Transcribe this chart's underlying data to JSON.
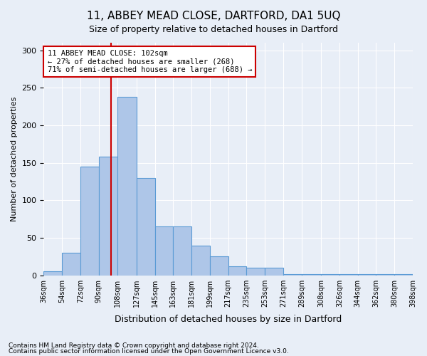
{
  "title": "11, ABBEY MEAD CLOSE, DARTFORD, DA1 5UQ",
  "subtitle": "Size of property relative to detached houses in Dartford",
  "xlabel": "Distribution of detached houses by size in Dartford",
  "ylabel": "Number of detached properties",
  "footer_line1": "Contains HM Land Registry data © Crown copyright and database right 2024.",
  "footer_line2": "Contains public sector information licensed under the Open Government Licence v3.0.",
  "bin_labels": [
    "36sqm",
    "54sqm",
    "72sqm",
    "90sqm",
    "108sqm",
    "127sqm",
    "145sqm",
    "163sqm",
    "181sqm",
    "199sqm",
    "217sqm",
    "235sqm",
    "253sqm",
    "271sqm",
    "289sqm",
    "308sqm",
    "326sqm",
    "344sqm",
    "362sqm",
    "380sqm",
    "398sqm"
  ],
  "bar_values": [
    5,
    30,
    145,
    158,
    238,
    130,
    65,
    65,
    40,
    25,
    12,
    10,
    10,
    2,
    2,
    2,
    2,
    2,
    2,
    2
  ],
  "bin_edges": [
    36,
    54,
    72,
    90,
    108,
    127,
    145,
    163,
    181,
    199,
    217,
    235,
    253,
    271,
    289,
    308,
    326,
    344,
    362,
    380,
    398
  ],
  "property_size": 102,
  "annotation_text": "11 ABBEY MEAD CLOSE: 102sqm\n← 27% of detached houses are smaller (268)\n71% of semi-detached houses are larger (688) →",
  "bar_color": "#aec6e8",
  "bar_edge_color": "#5b9bd5",
  "vline_color": "#cc0000",
  "annotation_box_color": "#ffffff",
  "annotation_box_edge": "#cc0000",
  "background_color": "#e8eef7",
  "ylim": [
    0,
    310
  ],
  "yticks": [
    0,
    50,
    100,
    150,
    200,
    250,
    300
  ]
}
